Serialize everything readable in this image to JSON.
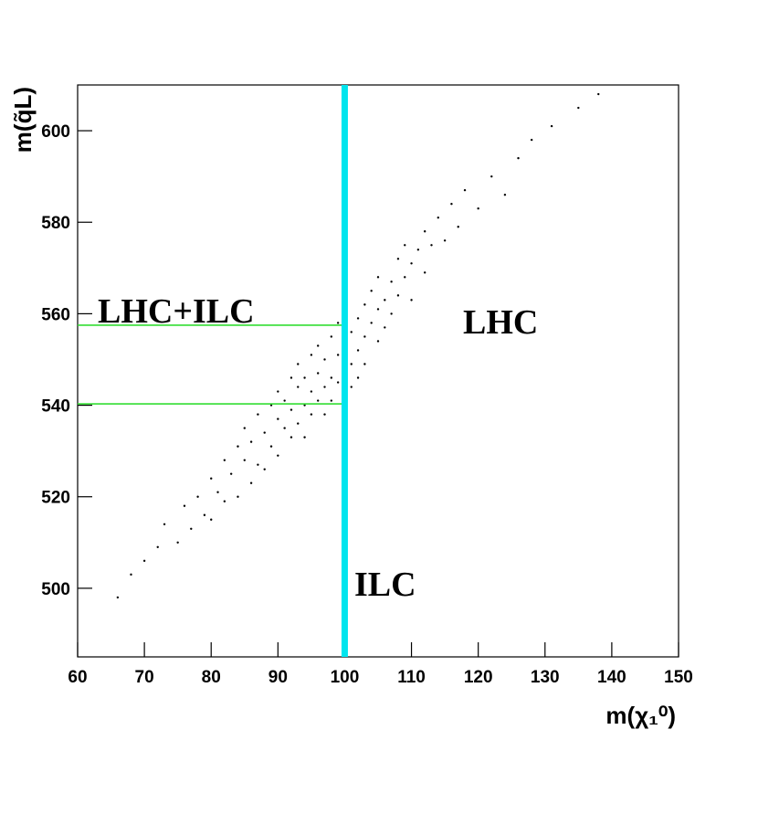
{
  "chart_data": {
    "type": "scatter",
    "x_label": "m(χ₁⁰)",
    "y_label": "m(q̃L)",
    "xlim": [
      60,
      150
    ],
    "xticks": [
      60,
      70,
      80,
      90,
      100,
      110,
      120,
      130,
      140,
      150
    ],
    "ylim": [
      485,
      610
    ],
    "yticks": [
      500,
      520,
      540,
      560,
      580,
      600
    ],
    "grid": false,
    "series": [
      {
        "color": "#000000",
        "x": [
          66,
          68,
          70,
          72,
          73,
          75,
          76,
          77,
          78,
          79,
          80,
          80,
          81,
          82,
          82,
          83,
          84,
          84,
          85,
          85,
          86,
          86,
          87,
          87,
          88,
          88,
          89,
          89,
          90,
          90,
          90,
          91,
          91,
          92,
          92,
          92,
          93,
          93,
          93,
          94,
          94,
          94,
          95,
          95,
          95,
          96,
          96,
          96,
          97,
          97,
          97,
          98,
          98,
          98,
          99,
          99,
          99,
          100,
          100,
          100,
          101,
          101,
          101,
          102,
          102,
          102,
          103,
          103,
          103,
          104,
          104,
          105,
          105,
          105,
          106,
          106,
          107,
          107,
          108,
          108,
          109,
          109,
          110,
          110,
          111,
          112,
          112,
          113,
          114,
          115,
          116,
          117,
          118,
          120,
          122,
          124,
          126,
          128,
          131,
          135,
          138
        ],
        "values": [
          498,
          503,
          506,
          509,
          514,
          510,
          518,
          513,
          520,
          516,
          524,
          515,
          521,
          528,
          519,
          525,
          531,
          520,
          528,
          535,
          523,
          532,
          538,
          527,
          534,
          526,
          540,
          531,
          537,
          529,
          543,
          535,
          541,
          546,
          533,
          539,
          544,
          536,
          549,
          540,
          546,
          533,
          551,
          543,
          538,
          547,
          541,
          553,
          544,
          550,
          538,
          555,
          546,
          541,
          551,
          545,
          558,
          548,
          554,
          541,
          556,
          549,
          544,
          559,
          552,
          546,
          562,
          555,
          549,
          558,
          565,
          561,
          554,
          568,
          563,
          557,
          567,
          560,
          572,
          564,
          568,
          575,
          571,
          563,
          574,
          578,
          569,
          575,
          581,
          576,
          584,
          579,
          587,
          583,
          590,
          586,
          594,
          598,
          601,
          605,
          608
        ]
      }
    ],
    "vlines": [
      {
        "x": 100,
        "color": "#00e5ee"
      }
    ],
    "hlines": [
      {
        "y": 557.5,
        "x_end": 100,
        "color": "#33dd33"
      },
      {
        "y": 540.3,
        "x_end": 100,
        "color": "#33dd33"
      }
    ],
    "annotations": [
      "LHC+ILC",
      "LHC",
      "ILC"
    ]
  }
}
